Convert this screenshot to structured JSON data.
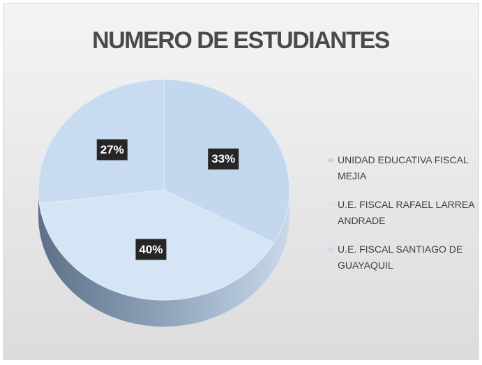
{
  "chart_data": {
    "type": "pie",
    "title": "NUMERO DE ESTUDIANTES",
    "categories": [
      "UNIDAD EDUCATIVA FISCAL MEJIA",
      "U.E. FISCAL RAFAEL LARREA ANDRADE",
      "U.E. FISCAL SANTIAGO DE GUAYAQUIL"
    ],
    "values": [
      33,
      40,
      27
    ],
    "value_labels": [
      "33%",
      "40%",
      "27%"
    ],
    "colors": [
      "#c3d7ee",
      "#d5e5f5",
      "#c8dbf0"
    ],
    "legend": "right"
  }
}
